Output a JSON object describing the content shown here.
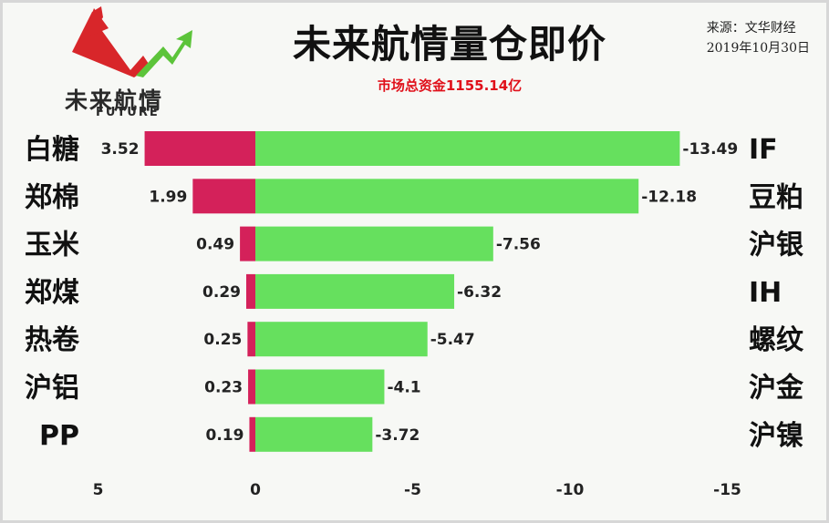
{
  "header": {
    "title": "未来航情量仓即价",
    "subtitle": "市场总资金1155.14亿",
    "source_line1": "来源：文华财经",
    "source_line2": "2019年10月30日",
    "logo_text_cn": "未来航情",
    "logo_text_en": "FUTURE"
  },
  "colors": {
    "positive_bar": "#d4215a",
    "negative_bar": "#66e05e",
    "logo_red": "#d8262a",
    "logo_green": "#5cc43a"
  },
  "chart_data": {
    "type": "bar",
    "orientation": "horizontal",
    "xlim": [
      5,
      -15
    ],
    "xticks": [
      "5",
      "0",
      "-5",
      "-10",
      "-15"
    ],
    "xtick_values": [
      5,
      0,
      -5,
      -10,
      -15
    ],
    "rows": [
      {
        "left_label": "白糖",
        "left_value": 3.52,
        "left_value_label": "3.52",
        "right_label": "IF",
        "right_value": -13.49,
        "right_value_label": "-13.49"
      },
      {
        "left_label": "郑棉",
        "left_value": 1.99,
        "left_value_label": "1.99",
        "right_label": "豆粕",
        "right_value": -12.18,
        "right_value_label": "-12.18"
      },
      {
        "left_label": "玉米",
        "left_value": 0.49,
        "left_value_label": "0.49",
        "right_label": "沪银",
        "right_value": -7.56,
        "right_value_label": "-7.56"
      },
      {
        "left_label": "郑煤",
        "left_value": 0.29,
        "left_value_label": "0.29",
        "right_label": "IH",
        "right_value": -6.32,
        "right_value_label": "-6.32"
      },
      {
        "left_label": "热卷",
        "left_value": 0.25,
        "left_value_label": "0.25",
        "right_label": "螺纹",
        "right_value": -5.47,
        "right_value_label": "-5.47"
      },
      {
        "left_label": "沪铝",
        "left_value": 0.23,
        "left_value_label": "0.23",
        "right_label": "沪金",
        "right_value": -4.1,
        "right_value_label": "-4.1"
      },
      {
        "left_label": "PP",
        "left_value": 0.19,
        "left_value_label": "0.19",
        "right_label": "沪镍",
        "right_value": -3.72,
        "right_value_label": "-3.72"
      }
    ]
  }
}
